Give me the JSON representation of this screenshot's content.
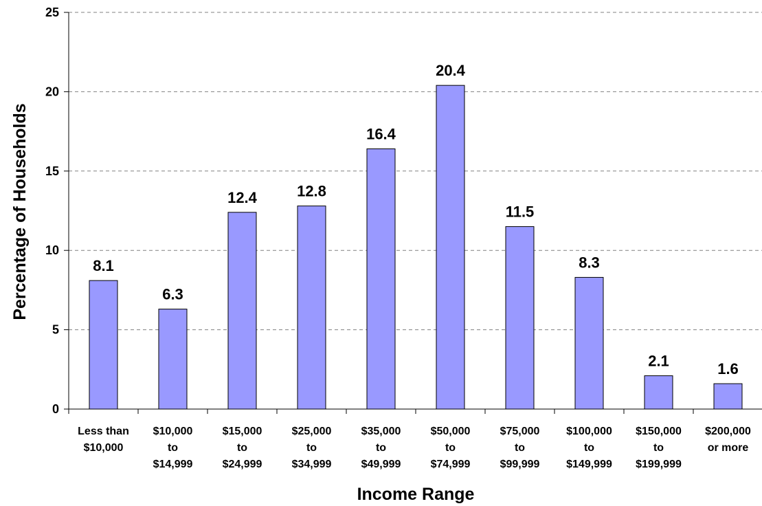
{
  "chart_data": {
    "type": "bar",
    "categories": [
      [
        "Less than",
        "$10,000"
      ],
      [
        "$10,000",
        "to",
        "$14,999"
      ],
      [
        "$15,000",
        "to",
        "$24,999"
      ],
      [
        "$25,000",
        "to",
        "$34,999"
      ],
      [
        "$35,000",
        "to",
        "$49,999"
      ],
      [
        "$50,000",
        "to",
        "$74,999"
      ],
      [
        "$75,000",
        "to",
        "$99,999"
      ],
      [
        "$100,000",
        "to",
        "$149,999"
      ],
      [
        "$150,000",
        "to",
        "$199,999"
      ],
      [
        "$200,000",
        "or more"
      ]
    ],
    "values": [
      8.1,
      6.3,
      12.4,
      12.8,
      16.4,
      20.4,
      11.5,
      8.3,
      2.1,
      1.6
    ],
    "value_labels": [
      "8.1",
      "6.3",
      "12.4",
      "12.8",
      "16.4",
      "20.4",
      "11.5",
      "8.3",
      "2.1",
      "1.6"
    ],
    "xlabel": "Income Range",
    "ylabel": "Percentage of Households",
    "ylim": [
      0,
      25
    ],
    "yticks": [
      0,
      5,
      10,
      15,
      20,
      25
    ],
    "grid": "horizontal dashed",
    "legend": "none",
    "colors": {
      "bar_fill": "#9999ff",
      "bar_stroke": "#000000",
      "grid": "#808080",
      "axis": "#000000"
    }
  }
}
